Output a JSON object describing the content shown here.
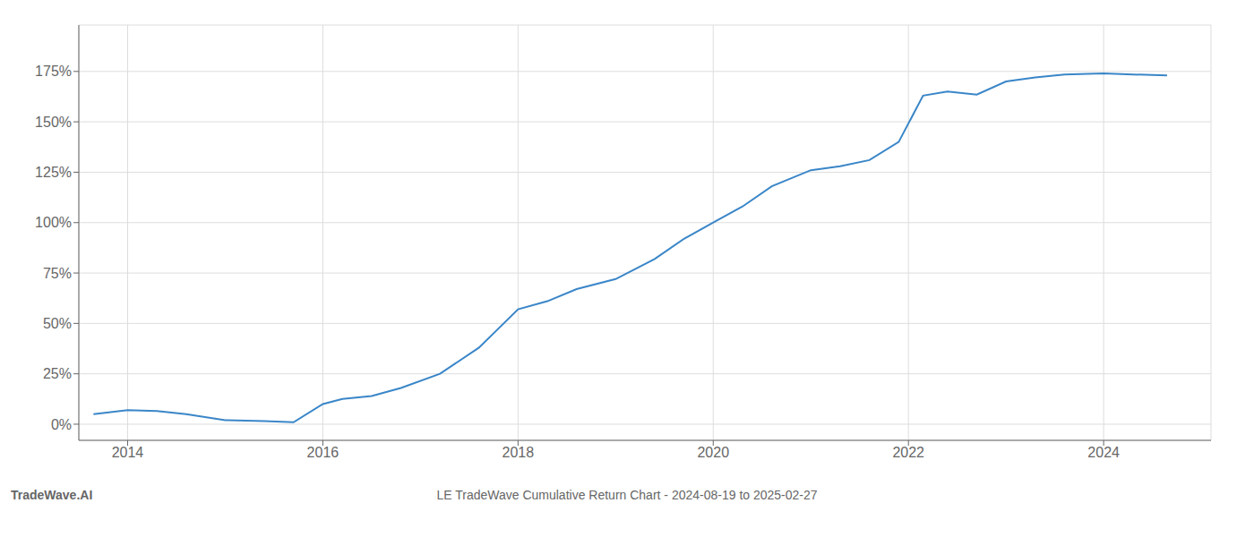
{
  "chart_data": {
    "type": "line",
    "title": "LE TradeWave Cumulative Return Chart - 2024-08-19 to 2025-02-27",
    "annotations": [
      {
        "text": "TradeWave.AI"
      }
    ],
    "x": [
      2013.65,
      2014.0,
      2014.3,
      2014.6,
      2015.0,
      2015.4,
      2015.7,
      2016.0,
      2016.2,
      2016.5,
      2016.8,
      2017.2,
      2017.6,
      2018.0,
      2018.3,
      2018.6,
      2019.0,
      2019.4,
      2019.7,
      2020.0,
      2020.3,
      2020.6,
      2021.0,
      2021.3,
      2021.6,
      2021.9,
      2022.15,
      2022.4,
      2022.7,
      2023.0,
      2023.3,
      2023.6,
      2024.0,
      2024.3,
      2024.65
    ],
    "values": [
      5.0,
      7.0,
      6.5,
      5.0,
      2.0,
      1.5,
      1.0,
      10.0,
      12.5,
      14.0,
      18.0,
      25.0,
      38.0,
      57.0,
      61.0,
      67.0,
      72.0,
      82.0,
      92.0,
      100.0,
      108.0,
      118.0,
      126.0,
      128.0,
      131.0,
      140.0,
      163.0,
      165.0,
      163.5,
      170.0,
      172.0,
      173.5,
      174.0,
      173.5,
      173.0
    ],
    "color": "#3a86c8",
    "xlim": [
      2013.5,
      2025.1
    ],
    "ylim": [
      -8,
      198
    ],
    "xticks": [
      2014,
      2016,
      2018,
      2020,
      2022,
      2024
    ],
    "yticks": [
      {
        "value": 0,
        "label": "0%"
      },
      {
        "value": 25,
        "label": "25%"
      },
      {
        "value": 50,
        "label": "50%"
      },
      {
        "value": 75,
        "label": "75%"
      },
      {
        "value": 100,
        "label": "100%"
      },
      {
        "value": 125,
        "label": "125%"
      },
      {
        "value": 150,
        "label": "150%"
      },
      {
        "value": 175,
        "label": "175%"
      }
    ],
    "grid": true
  }
}
